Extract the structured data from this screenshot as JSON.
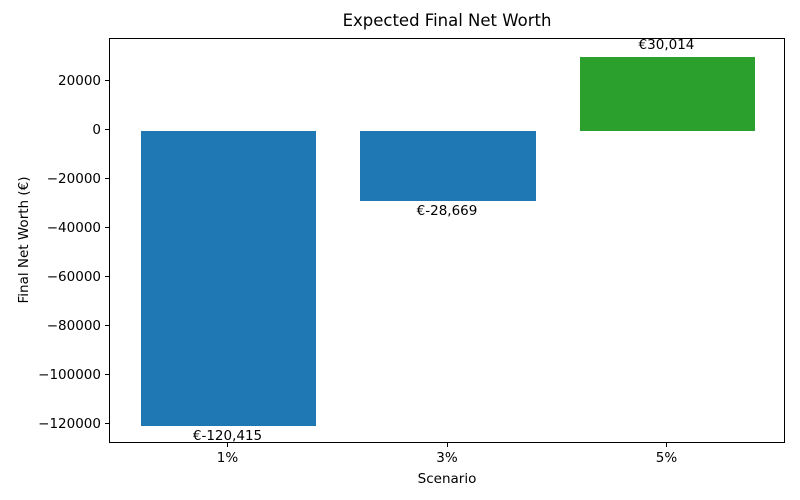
{
  "chart_data": {
    "type": "bar",
    "title": "Expected Final Net Worth",
    "xlabel": "Scenario",
    "ylabel": "Final Net Worth (€)",
    "categories": [
      "1%",
      "3%",
      "5%"
    ],
    "values": [
      -120415,
      -28669,
      30014
    ],
    "bar_labels": [
      "€-120,415",
      "€-28,669",
      "€30,014"
    ],
    "colors": [
      "#1f77b4",
      "#1f77b4",
      "#2ca02c"
    ],
    "ylim": [
      -127936,
      37535
    ],
    "ytick_values": [
      -120000,
      -100000,
      -80000,
      -60000,
      -40000,
      -20000,
      0,
      20000
    ],
    "ytick_labels": [
      "−120000",
      "−100000",
      "−80000",
      "−60000",
      "−40000",
      "−20000",
      "0",
      "20000"
    ],
    "grid": false,
    "legend": null,
    "bar_width_fraction": 0.8,
    "axis_color": "#000000",
    "background_color": "#ffffff"
  }
}
